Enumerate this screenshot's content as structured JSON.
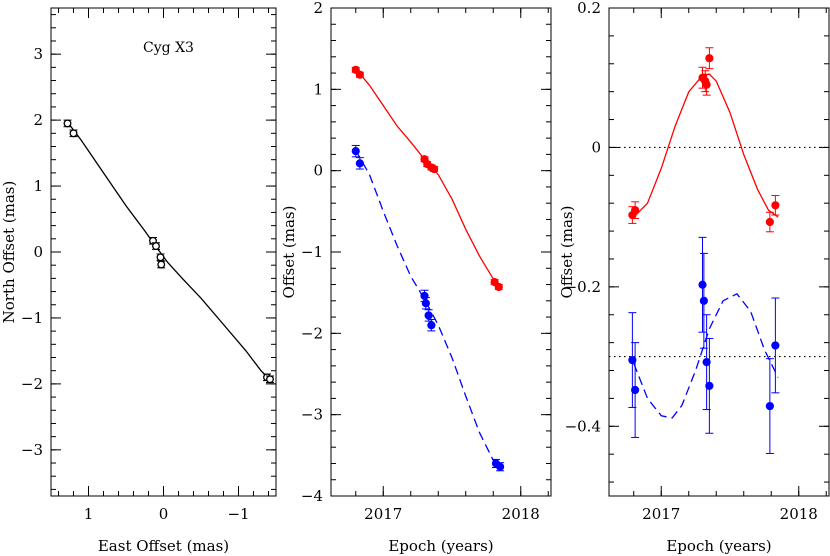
{
  "chart_data": [
    {
      "type": "scatter",
      "panel": "left",
      "title": "",
      "annotation": "Cyg X3",
      "xlabel": "East Offset (mas)",
      "ylabel": "North Offset (mas)",
      "xlim": [
        1.5,
        -1.5
      ],
      "ylim": [
        -3.7,
        3.7
      ],
      "x_inverted": true,
      "xticks": [
        1,
        0,
        -1
      ],
      "xtick_labels": [
        "1",
        "0",
        "−1"
      ],
      "yticks": [
        -3,
        -2,
        -1,
        0,
        1,
        2,
        3
      ],
      "ytick_labels": [
        "−3",
        "−2",
        "−1",
        "0",
        "1",
        "2",
        "3"
      ],
      "color": "#000000",
      "marker": "open-circle",
      "points": [
        {
          "x": 1.28,
          "y": 1.95,
          "ey": 0.05
        },
        {
          "x": 1.2,
          "y": 1.8,
          "ey": 0.05
        },
        {
          "x": 0.14,
          "y": 0.17,
          "ey": 0.05
        },
        {
          "x": 0.1,
          "y": 0.09,
          "ey": 0.05
        },
        {
          "x": 0.04,
          "y": -0.08,
          "ey": 0.05
        },
        {
          "x": 0.03,
          "y": -0.19,
          "ey": 0.05
        },
        {
          "x": -1.38,
          "y": -1.9,
          "ey": 0.05
        },
        {
          "x": -1.42,
          "y": -1.93,
          "ey": 0.05
        }
      ],
      "curve": {
        "style": "solid",
        "points": [
          [
            1.28,
            1.97
          ],
          [
            1.1,
            1.7
          ],
          [
            0.8,
            1.2
          ],
          [
            0.5,
            0.7
          ],
          [
            0.25,
            0.32
          ],
          [
            0.1,
            0.08
          ],
          [
            -0.05,
            -0.15
          ],
          [
            -0.25,
            -0.4
          ],
          [
            -0.5,
            -0.7
          ],
          [
            -0.8,
            -1.1
          ],
          [
            -1.1,
            -1.5
          ],
          [
            -1.3,
            -1.8
          ],
          [
            -1.45,
            -1.97
          ]
        ]
      }
    },
    {
      "type": "scatter",
      "panel": "middle",
      "title": "",
      "xlabel": "Epoch (years)",
      "ylabel": "Offset (mas)",
      "xlim": [
        2016.62,
        2018.22
      ],
      "ylim": [
        -4,
        2
      ],
      "xticks": [
        2017,
        2018
      ],
      "xtick_labels": [
        "2017",
        "2018"
      ],
      "yticks": [
        -4,
        -3,
        -2,
        -1,
        0,
        1,
        2
      ],
      "ytick_labels": [
        "−4",
        "−3",
        "−2",
        "−1",
        "0",
        "1",
        "2"
      ],
      "series": [
        {
          "color": "#ff0000",
          "marker": "filled-circle",
          "line_style": "solid",
          "points": [
            {
              "x": 2016.8,
              "y": 1.24,
              "ey": 0.03
            },
            {
              "x": 2016.83,
              "y": 1.18,
              "ey": 0.03
            },
            {
              "x": 2017.3,
              "y": 0.14,
              "ey": 0.03
            },
            {
              "x": 2017.32,
              "y": 0.08,
              "ey": 0.03
            },
            {
              "x": 2017.35,
              "y": 0.04,
              "ey": 0.03
            },
            {
              "x": 2017.37,
              "y": 0.02,
              "ey": 0.03
            },
            {
              "x": 2017.81,
              "y": -1.37,
              "ey": 0.03
            },
            {
              "x": 2017.84,
              "y": -1.43,
              "ey": 0.03
            }
          ],
          "curve": [
            [
              2016.8,
              1.25
            ],
            [
              2016.9,
              1.05
            ],
            [
              2017.0,
              0.8
            ],
            [
              2017.1,
              0.55
            ],
            [
              2017.2,
              0.35
            ],
            [
              2017.3,
              0.14
            ],
            [
              2017.4,
              -0.05
            ],
            [
              2017.5,
              -0.35
            ],
            [
              2017.6,
              -0.72
            ],
            [
              2017.7,
              -1.05
            ],
            [
              2017.8,
              -1.33
            ],
            [
              2017.85,
              -1.44
            ]
          ]
        },
        {
          "color": "#0000ff",
          "marker": "filled-circle",
          "line_style": "dashed",
          "points": [
            {
              "x": 2016.8,
              "y": 0.24,
              "ey": 0.07
            },
            {
              "x": 2016.83,
              "y": 0.09,
              "ey": 0.07
            },
            {
              "x": 2017.3,
              "y": -1.54,
              "ey": 0.07
            },
            {
              "x": 2017.31,
              "y": -1.63,
              "ey": 0.07
            },
            {
              "x": 2017.33,
              "y": -1.78,
              "ey": 0.07
            },
            {
              "x": 2017.35,
              "y": -1.9,
              "ey": 0.07
            },
            {
              "x": 2017.82,
              "y": -3.6,
              "ey": 0.05
            },
            {
              "x": 2017.85,
              "y": -3.64,
              "ey": 0.05
            }
          ],
          "curve": [
            [
              2016.8,
              0.25
            ],
            [
              2016.9,
              -0.05
            ],
            [
              2017.0,
              -0.5
            ],
            [
              2017.1,
              -0.92
            ],
            [
              2017.2,
              -1.3
            ],
            [
              2017.3,
              -1.58
            ],
            [
              2017.4,
              -1.9
            ],
            [
              2017.5,
              -2.3
            ],
            [
              2017.6,
              -2.77
            ],
            [
              2017.7,
              -3.22
            ],
            [
              2017.8,
              -3.56
            ],
            [
              2017.86,
              -3.66
            ]
          ]
        }
      ]
    },
    {
      "type": "scatter",
      "panel": "right",
      "title": "",
      "xlabel": "Epoch (years)",
      "ylabel": "Offset (mas)",
      "xlim": [
        2016.62,
        2018.22
      ],
      "ylim": [
        -0.5,
        0.2
      ],
      "xticks": [
        2017,
        2018
      ],
      "xtick_labels": [
        "2017",
        "2018"
      ],
      "yticks": [
        -0.4,
        -0.2,
        0,
        0.2
      ],
      "ytick_labels": [
        "−0.4",
        "−0.2",
        "0",
        "0.2"
      ],
      "reference_lines": [
        0,
        -0.3
      ],
      "series": [
        {
          "color": "#ff0000",
          "marker": "filled-circle",
          "line_style": "solid",
          "points": [
            {
              "x": 2016.79,
              "y": -0.097,
              "ey": 0.012
            },
            {
              "x": 2016.81,
              "y": -0.09,
              "ey": 0.012
            },
            {
              "x": 2017.3,
              "y": 0.1,
              "ey": 0.015
            },
            {
              "x": 2017.32,
              "y": 0.095,
              "ey": 0.015
            },
            {
              "x": 2017.33,
              "y": 0.09,
              "ey": 0.015
            },
            {
              "x": 2017.35,
              "y": 0.128,
              "ey": 0.015
            },
            {
              "x": 2017.79,
              "y": -0.107,
              "ey": 0.014
            },
            {
              "x": 2017.83,
              "y": -0.083,
              "ey": 0.014
            }
          ],
          "curve": [
            [
              2016.8,
              -0.1
            ],
            [
              2016.9,
              -0.08
            ],
            [
              2017.0,
              -0.03
            ],
            [
              2017.1,
              0.03
            ],
            [
              2017.2,
              0.08
            ],
            [
              2017.3,
              0.103
            ],
            [
              2017.35,
              0.105
            ],
            [
              2017.4,
              0.095
            ],
            [
              2017.5,
              0.05
            ],
            [
              2017.6,
              -0.01
            ],
            [
              2017.7,
              -0.06
            ],
            [
              2017.78,
              -0.09
            ],
            [
              2017.85,
              -0.1
            ]
          ]
        },
        {
          "color": "#0000ff",
          "marker": "filled-circle",
          "line_style": "dashed",
          "points": [
            {
              "x": 2016.79,
              "y": -0.305,
              "ey": 0.068
            },
            {
              "x": 2016.81,
              "y": -0.348,
              "ey": 0.068
            },
            {
              "x": 2017.3,
              "y": -0.197,
              "ey": 0.068
            },
            {
              "x": 2017.31,
              "y": -0.22,
              "ey": 0.068
            },
            {
              "x": 2017.33,
              "y": -0.308,
              "ey": 0.068
            },
            {
              "x": 2017.35,
              "y": -0.342,
              "ey": 0.068
            },
            {
              "x": 2017.79,
              "y": -0.371,
              "ey": 0.068
            },
            {
              "x": 2017.83,
              "y": -0.284,
              "ey": 0.068
            }
          ],
          "curve": [
            [
              2016.8,
              -0.31
            ],
            [
              2016.9,
              -0.36
            ],
            [
              2017.0,
              -0.385
            ],
            [
              2017.08,
              -0.388
            ],
            [
              2017.15,
              -0.37
            ],
            [
              2017.25,
              -0.32
            ],
            [
              2017.35,
              -0.26
            ],
            [
              2017.45,
              -0.22
            ],
            [
              2017.55,
              -0.21
            ],
            [
              2017.65,
              -0.235
            ],
            [
              2017.75,
              -0.29
            ],
            [
              2017.85,
              -0.33
            ]
          ]
        }
      ]
    }
  ]
}
